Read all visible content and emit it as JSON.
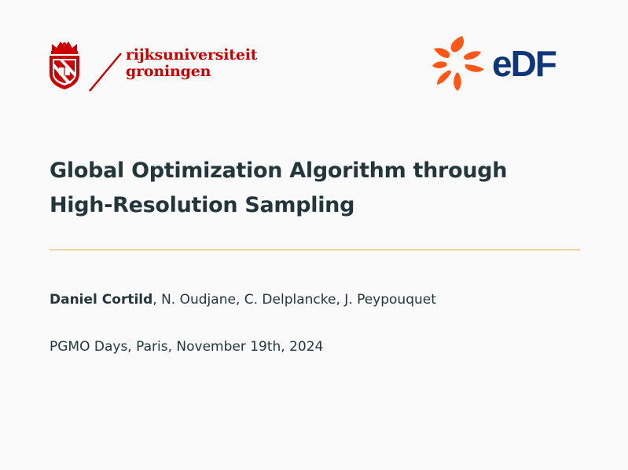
{
  "logos": {
    "university": {
      "wordmark_line1": "rijksuniversiteit",
      "wordmark_line2": "groningen",
      "icon": "university-crest-icon",
      "color": "#cc0000"
    },
    "company": {
      "wordmark": "eDF",
      "icon": "edf-burst-icon",
      "burst_color": "#fe5716",
      "text_color": "#10367a"
    }
  },
  "title": {
    "line1": "Global Optimization Algorithm through",
    "line2": "High-Resolution Sampling"
  },
  "authors": {
    "presenter": "Daniel Cortild",
    "others": ", N. Oudjane, C. Delplancke, J. Peypouquet"
  },
  "event": "PGMO Days, Paris, November 19th, 2024",
  "colors": {
    "background": "#fafafa",
    "text": "#23373b",
    "divider": "#e9a64a"
  }
}
